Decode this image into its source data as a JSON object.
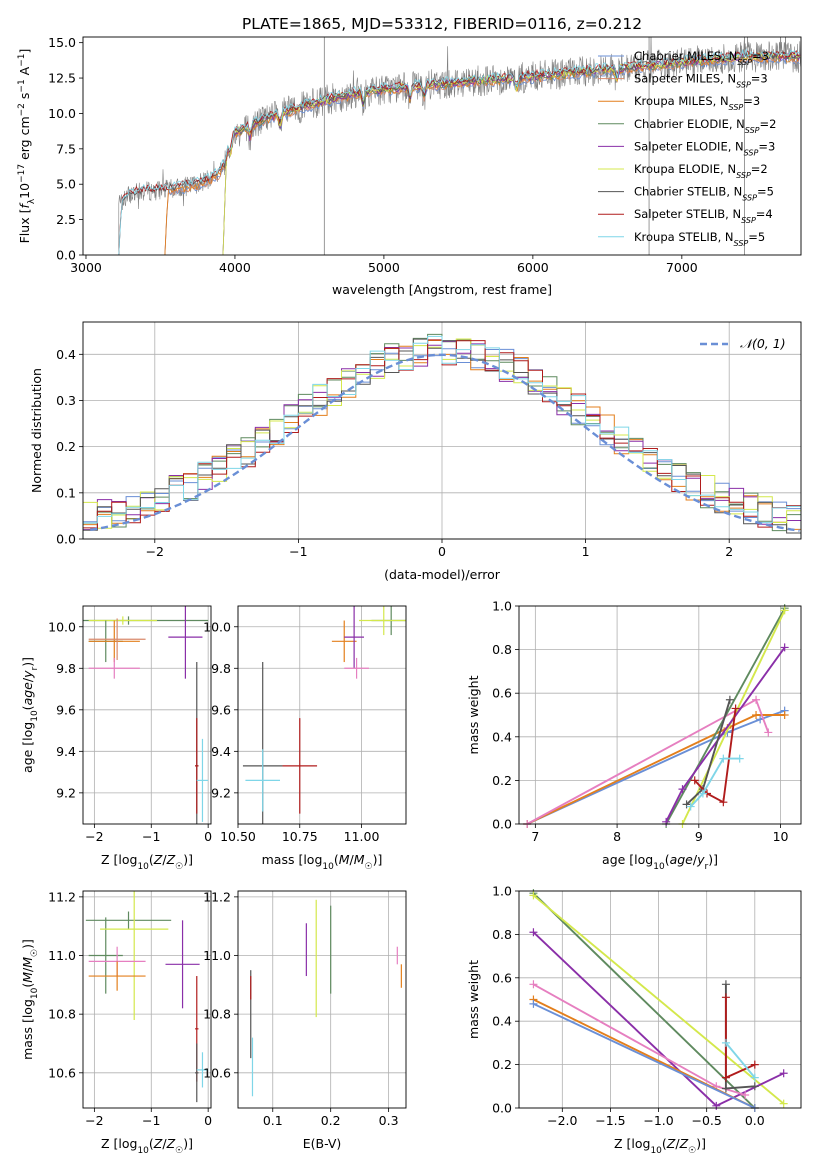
{
  "figure": {
    "title": "PLATE=1865, MJD=53312, FIBERID=0116, z=0.212"
  },
  "colors": {
    "Chabrier MILES": "#6a8fd6",
    "Salpeter MILES": "#d98a6b",
    "Kroupa MILES": "#e37f1c",
    "Chabrier ELODIE": "#5f8a5f",
    "Salpeter ELODIE": "#8a2fa8",
    "Kroupa ELODIE": "#d4e84c",
    "Chabrier STELIB": "#555555",
    "Salpeter STELIB": "#b01c1c",
    "Kroupa STELIB": "#7fd6e8",
    "pink": "#e67fc0",
    "data": "#808080",
    "gauss": "#6a8fd6"
  },
  "chart_data": [
    {
      "id": "spectrum",
      "type": "line",
      "xlabel": "wavelength [Angstrom, rest frame]",
      "ylabel_parts": [
        "Flux [",
        "f",
        "λ",
        "10",
        "−17",
        " erg cm",
        "−2",
        " s",
        "−1",
        " A",
        "−1",
        "]"
      ],
      "xlim": [
        2980,
        7800
      ],
      "ylim": [
        0,
        15.4
      ],
      "xticks": [
        3000,
        4000,
        5000,
        6000,
        7000
      ],
      "yticks": [
        0.0,
        2.5,
        5.0,
        7.5,
        10.0,
        12.5,
        15.0
      ],
      "ytick_labels": [
        "0.0",
        "2.5",
        "5.0",
        "7.5",
        "10.0",
        "12.5",
        "15.0"
      ],
      "grid": false,
      "legend_location": "right",
      "continuum": {
        "x": [
          3220,
          3300,
          3400,
          3500,
          3600,
          3700,
          3800,
          3900,
          3950,
          4000,
          4100,
          4200,
          4400,
          4600,
          4800,
          5000,
          5200,
          5400,
          5600,
          5800,
          6000,
          6200,
          6400,
          6600,
          6800,
          7000,
          7200,
          7400
        ],
        "y": [
          3.6,
          4.3,
          4.5,
          4.6,
          4.7,
          4.9,
          5.2,
          5.8,
          7.6,
          8.6,
          9.1,
          9.6,
          10.3,
          10.9,
          11.4,
          11.7,
          11.9,
          12.1,
          12.3,
          12.4,
          12.6,
          12.8,
          13.0,
          13.2,
          13.4,
          13.6,
          13.8,
          14.0
        ]
      },
      "models": [
        {
          "name": "Chabrier MILES",
          "label_main": "Chabrier MILES, N",
          "label_sub": "SSP",
          "label_tail": "=3",
          "start": 3530
        },
        {
          "name": "Salpeter MILES",
          "label_main": "Salpeter MILES, N",
          "label_sub": "SSP",
          "label_tail": "=3",
          "start": 3530
        },
        {
          "name": "Kroupa MILES",
          "label_main": "Kroupa MILES, N",
          "label_sub": "SSP",
          "label_tail": "=3",
          "start": 3530
        },
        {
          "name": "Chabrier ELODIE",
          "label_main": "Chabrier ELODIE, N",
          "label_sub": "SSP",
          "label_tail": "=2",
          "start": 3920
        },
        {
          "name": "Salpeter ELODIE",
          "label_main": "Salpeter ELODIE, N",
          "label_sub": "SSP",
          "label_tail": "=3",
          "start": 3920
        },
        {
          "name": "Kroupa ELODIE",
          "label_main": "Kroupa ELODIE, N",
          "label_sub": "SSP",
          "label_tail": "=2",
          "start": 3920
        },
        {
          "name": "Chabrier STELIB",
          "label_main": "Chabrier STELIB, N",
          "label_sub": "SSP",
          "label_tail": "=5",
          "start": 3220
        },
        {
          "name": "Salpeter STELIB",
          "label_main": "Salpeter STELIB, N",
          "label_sub": "SSP",
          "label_tail": "=4",
          "start": 3220
        },
        {
          "name": "Kroupa STELIB",
          "label_main": "Kroupa STELIB, N",
          "label_sub": "SSP",
          "label_tail": "=5",
          "start": 3220
        }
      ],
      "spikes": [
        4600,
        6780,
        7420
      ]
    },
    {
      "id": "residuals",
      "type": "histogram",
      "xlabel": "(data-model)/error",
      "ylabel": "Normed distribution",
      "xlim": [
        -2.5,
        2.5
      ],
      "ylim": [
        0,
        0.47
      ],
      "xticks": [
        -2,
        -1,
        0,
        1,
        2
      ],
      "xtick_labels": [
        "−2",
        "−1",
        "0",
        "1",
        "2"
      ],
      "yticks": [
        0.0,
        0.1,
        0.2,
        0.3,
        0.4
      ],
      "ytick_labels": [
        "0.0",
        "0.1",
        "0.2",
        "0.3",
        "0.4"
      ],
      "grid": true,
      "bin_width": 0.1,
      "legend_label": "𝒩(0, 1)",
      "legend_location": "top-right",
      "series_order": [
        "Chabrier MILES",
        "Kroupa MILES",
        "Chabrier ELODIE",
        "Salpeter ELODIE",
        "Kroupa ELODIE",
        "Chabrier STELIB",
        "Salpeter STELIB",
        "Kroupa STELIB"
      ]
    },
    {
      "id": "age_vs_Z",
      "type": "errorbar",
      "xlabel": "Z [log10(Z/Z☉)]",
      "ylabel": "age  [log10(age/yr)]",
      "xlim": [
        -2.2,
        0.05
      ],
      "ylim": [
        9.05,
        10.1
      ],
      "xticks": [
        -2,
        -1,
        0
      ],
      "xtick_labels": [
        "−2",
        "−1",
        "0"
      ],
      "yticks": [
        9.2,
        9.4,
        9.6,
        9.8,
        10.0
      ],
      "ytick_labels": [
        "9.2",
        "9.4",
        "9.6",
        "9.8",
        "10.0"
      ],
      "points": [
        {
          "series": "Chabrier ELODIE",
          "x": -1.4,
          "xerr": 1.4,
          "y": 10.03,
          "yerr": 0.02
        },
        {
          "series": "Kroupa ELODIE",
          "x": -1.5,
          "xerr": 0.6,
          "y": 10.03,
          "yerr": 0.02
        },
        {
          "series": "Chabrier ELODIE",
          "x": -1.8,
          "xerr": 0.3,
          "y": 9.93,
          "yerr": 0.1
        },
        {
          "series": "Kroupa MILES",
          "x": -1.65,
          "xerr": 0.45,
          "y": 9.93,
          "yerr": 0.1
        },
        {
          "series": "Salpeter MILES",
          "x": -1.6,
          "xerr": 0.5,
          "y": 9.94,
          "yerr": 0.1
        },
        {
          "series": "pink",
          "x": -1.65,
          "xerr": 0.45,
          "y": 9.8,
          "yerr": 0.05
        },
        {
          "series": "Salpeter ELODIE",
          "x": -0.4,
          "xerr": 0.3,
          "y": 9.95,
          "yerr": 0.2
        },
        {
          "series": "Chabrier STELIB",
          "x": -0.2,
          "xerr": 0.03,
          "y": 9.33,
          "yerr": 0.5
        },
        {
          "series": "Salpeter STELIB",
          "x": -0.2,
          "xerr": 0.03,
          "y": 9.33,
          "yerr": 0.23
        },
        {
          "series": "Kroupa STELIB",
          "x": -0.1,
          "xerr": 0.1,
          "y": 9.26,
          "yerr": 0.2
        }
      ]
    },
    {
      "id": "age_vs_mass",
      "type": "errorbar",
      "xlabel": "mass [log10(M/M☉)]",
      "ylabel": "",
      "xlim": [
        10.5,
        11.18
      ],
      "ylim": [
        9.05,
        10.1
      ],
      "xticks": [
        10.5,
        10.75,
        11.0
      ],
      "xtick_labels": [
        "10.50",
        "10.75",
        "11.00"
      ],
      "yticks": [
        9.2,
        9.4,
        9.6,
        9.8,
        10.0
      ],
      "ytick_labels": [
        "9.2",
        "9.4",
        "9.6",
        "9.8",
        "10.0"
      ],
      "points": [
        {
          "series": "Chabrier ELODIE",
          "x": 11.12,
          "xerr": 0.08,
          "y": 10.03,
          "yerr": 0.07
        },
        {
          "series": "Kroupa ELODIE",
          "x": 11.09,
          "xerr": 0.1,
          "y": 10.03,
          "yerr": 0.07
        },
        {
          "series": "Kroupa MILES",
          "x": 10.93,
          "xerr": 0.05,
          "y": 9.93,
          "yerr": 0.1
        },
        {
          "series": "Salpeter ELODIE",
          "x": 10.97,
          "xerr": 0.04,
          "y": 9.95,
          "yerr": 0.15
        },
        {
          "series": "pink",
          "x": 10.98,
          "xerr": 0.05,
          "y": 9.8,
          "yerr": 0.05
        },
        {
          "series": "Chabrier STELIB",
          "x": 10.6,
          "xerr": 0.08,
          "y": 9.33,
          "yerr": 0.5
        },
        {
          "series": "Salpeter STELIB",
          "x": 10.75,
          "xerr": 0.07,
          "y": 9.33,
          "yerr": 0.23
        },
        {
          "series": "Kroupa STELIB",
          "x": 10.6,
          "xerr": 0.07,
          "y": 9.26,
          "yerr": 0.15
        }
      ]
    },
    {
      "id": "weight_vs_age",
      "type": "line",
      "xlabel": "age  [log10(age/yr)]",
      "ylabel": "mass weight",
      "xlim": [
        6.8,
        10.25
      ],
      "ylim": [
        0,
        1.0
      ],
      "xticks": [
        7,
        8,
        9,
        10
      ],
      "xtick_labels": [
        "7",
        "8",
        "9",
        "10"
      ],
      "yticks": [
        0.0,
        0.2,
        0.4,
        0.6,
        0.8,
        1.0
      ],
      "ytick_labels": [
        "0.0",
        "0.2",
        "0.4",
        "0.6",
        "0.8",
        "1.0"
      ],
      "grid": true,
      "series": [
        {
          "name": "Chabrier MILES",
          "x": [
            6.9,
            9.35,
            9.75,
            10.05
          ],
          "y": [
            0.0,
            0.42,
            0.48,
            0.52
          ]
        },
        {
          "name": "Kroupa MILES",
          "x": [
            6.9,
            9.35,
            9.7,
            10.05
          ],
          "y": [
            0.0,
            0.44,
            0.5,
            0.5
          ]
        },
        {
          "name": "pink",
          "x": [
            6.9,
            9.7,
            9.85
          ],
          "y": [
            0.0,
            0.57,
            0.42
          ]
        },
        {
          "name": "Chabrier ELODIE",
          "x": [
            8.6,
            10.05
          ],
          "y": [
            0.0,
            0.99
          ]
        },
        {
          "name": "Kroupa ELODIE",
          "x": [
            8.8,
            10.05
          ],
          "y": [
            0.0,
            0.98
          ]
        },
        {
          "name": "Salpeter ELODIE",
          "x": [
            8.6,
            8.8,
            10.05
          ],
          "y": [
            0.01,
            0.16,
            0.81
          ]
        },
        {
          "name": "Chabrier STELIB",
          "x": [
            8.85,
            9.05,
            9.38
          ],
          "y": [
            0.09,
            0.16,
            0.57
          ]
        },
        {
          "name": "Salpeter STELIB",
          "x": [
            8.95,
            9.1,
            9.3,
            9.45
          ],
          "y": [
            0.2,
            0.14,
            0.1,
            0.53
          ]
        },
        {
          "name": "Kroupa STELIB",
          "x": [
            8.9,
            9.05,
            9.3,
            9.5
          ],
          "y": [
            0.08,
            0.14,
            0.3,
            0.3
          ]
        }
      ]
    },
    {
      "id": "mass_vs_Z",
      "type": "errorbar",
      "xlabel": "Z [log10(Z/Z☉)]",
      "ylabel": "mass [log10(M/M☉)]",
      "xlim": [
        -2.2,
        0.05
      ],
      "ylim": [
        10.48,
        11.22
      ],
      "xticks": [
        -2,
        -1,
        0
      ],
      "xtick_labels": [
        "−2",
        "−1",
        "0"
      ],
      "yticks": [
        10.6,
        10.8,
        11.0,
        11.2
      ],
      "ytick_labels": [
        "10.6",
        "10.8",
        "11.0",
        "11.2"
      ],
      "points": [
        {
          "series": "Chabrier ELODIE",
          "x": -1.4,
          "xerr": 0.75,
          "y": 11.12,
          "yerr": 0.03
        },
        {
          "series": "Chabrier ELODIE",
          "x": -1.8,
          "xerr": 0.3,
          "y": 11.0,
          "yerr": 0.13
        },
        {
          "series": "Kroupa ELODIE",
          "x": -1.3,
          "xerr": 0.6,
          "y": 11.09,
          "yerr": 0.31
        },
        {
          "series": "pink",
          "x": -1.6,
          "xerr": 0.5,
          "y": 10.98,
          "yerr": 0.05
        },
        {
          "series": "Kroupa MILES",
          "x": -1.6,
          "xerr": 0.5,
          "y": 10.93,
          "yerr": 0.05
        },
        {
          "series": "Salpeter ELODIE",
          "x": -0.45,
          "xerr": 0.3,
          "y": 10.97,
          "yerr": 0.15
        },
        {
          "series": "Salpeter STELIB",
          "x": -0.2,
          "xerr": 0.03,
          "y": 10.75,
          "yerr": 0.18
        },
        {
          "series": "Chabrier STELIB",
          "x": -0.2,
          "xerr": 0.03,
          "y": 10.6,
          "yerr": 0.1
        },
        {
          "series": "Kroupa STELIB",
          "x": -0.1,
          "xerr": 0.1,
          "y": 10.61,
          "yerr": 0.06
        }
      ]
    },
    {
      "id": "mass_vs_EBV",
      "type": "errorbar",
      "xlabel": "E(B-V)",
      "ylabel": "",
      "xlim": [
        0.04,
        0.33
      ],
      "ylim": [
        10.48,
        11.22
      ],
      "xticks": [
        0.1,
        0.2,
        0.3
      ],
      "xtick_labels": [
        "0.1",
        "0.2",
        "0.3"
      ],
      "yticks": [
        10.6,
        10.8,
        11.0,
        11.2
      ],
      "ytick_labels": [
        "10.6",
        "10.8",
        "11.0",
        "11.2"
      ],
      "points": [
        {
          "series": "Chabrier STELIB",
          "x": 0.062,
          "xerr": 0.0,
          "y": 10.8,
          "yerr": 0.15
        },
        {
          "series": "Kroupa STELIB",
          "x": 0.065,
          "xerr": 0.0,
          "y": 10.62,
          "yerr": 0.1
        },
        {
          "series": "Salpeter STELIB",
          "x": 0.062,
          "xerr": 0.0,
          "y": 10.89,
          "yerr": 0.04
        },
        {
          "series": "Salpeter ELODIE",
          "x": 0.158,
          "xerr": 0.0,
          "y": 11.02,
          "yerr": 0.09
        },
        {
          "series": "Kroupa ELODIE",
          "x": 0.175,
          "xerr": 0.0,
          "y": 10.99,
          "yerr": 0.2
        },
        {
          "series": "Chabrier ELODIE",
          "x": 0.2,
          "xerr": 0.0,
          "y": 11.02,
          "yerr": 0.15
        },
        {
          "series": "pink",
          "x": 0.315,
          "xerr": 0.0,
          "y": 11.0,
          "yerr": 0.03
        },
        {
          "series": "Kroupa MILES",
          "x": 0.322,
          "xerr": 0.0,
          "y": 10.93,
          "yerr": 0.04
        }
      ]
    },
    {
      "id": "weight_vs_Z",
      "type": "line",
      "xlabel": "Z [log10(Z/Z☉)]",
      "ylabel": "mass weight",
      "xlim": [
        -2.45,
        0.48
      ],
      "ylim": [
        0,
        1.0
      ],
      "xticks": [
        -2.0,
        -1.5,
        -1.0,
        -0.5,
        0.0
      ],
      "xtick_labels": [
        "−2.0",
        "−1.5",
        "−1.0",
        "−0.5",
        "0.0"
      ],
      "yticks": [
        0.0,
        0.2,
        0.4,
        0.6,
        0.8,
        1.0
      ],
      "ytick_labels": [
        "0.0",
        "0.2",
        "0.4",
        "0.6",
        "0.8",
        "1.0"
      ],
      "grid": true,
      "series": [
        {
          "name": "Chabrier ELODIE",
          "x": [
            -2.3,
            0.0
          ],
          "y": [
            0.99,
            0.0
          ]
        },
        {
          "name": "Kroupa ELODIE",
          "x": [
            -2.3,
            0.3
          ],
          "y": [
            0.98,
            0.02
          ]
        },
        {
          "name": "Salpeter ELODIE",
          "x": [
            -2.3,
            -0.4,
            0.3
          ],
          "y": [
            0.81,
            0.01,
            0.16
          ]
        },
        {
          "name": "pink",
          "x": [
            -2.3,
            -0.4,
            -0.1
          ],
          "y": [
            0.57,
            0.1,
            0.06
          ]
        },
        {
          "name": "Kroupa MILES",
          "x": [
            -2.3,
            0.0
          ],
          "y": [
            0.5,
            0.0
          ]
        },
        {
          "name": "Chabrier MILES",
          "x": [
            -2.3,
            0.0
          ],
          "y": [
            0.48,
            0.0
          ]
        },
        {
          "name": "Chabrier STELIB",
          "x": [
            -0.3,
            -0.3,
            0.0
          ],
          "y": [
            0.57,
            0.09,
            0.1
          ]
        },
        {
          "name": "Salpeter STELIB",
          "x": [
            -0.3,
            -0.3,
            0.0
          ],
          "y": [
            0.51,
            0.14,
            0.2
          ]
        },
        {
          "name": "Kroupa STELIB",
          "x": [
            -0.3,
            0.0
          ],
          "y": [
            0.3,
            0.14
          ]
        }
      ]
    }
  ]
}
